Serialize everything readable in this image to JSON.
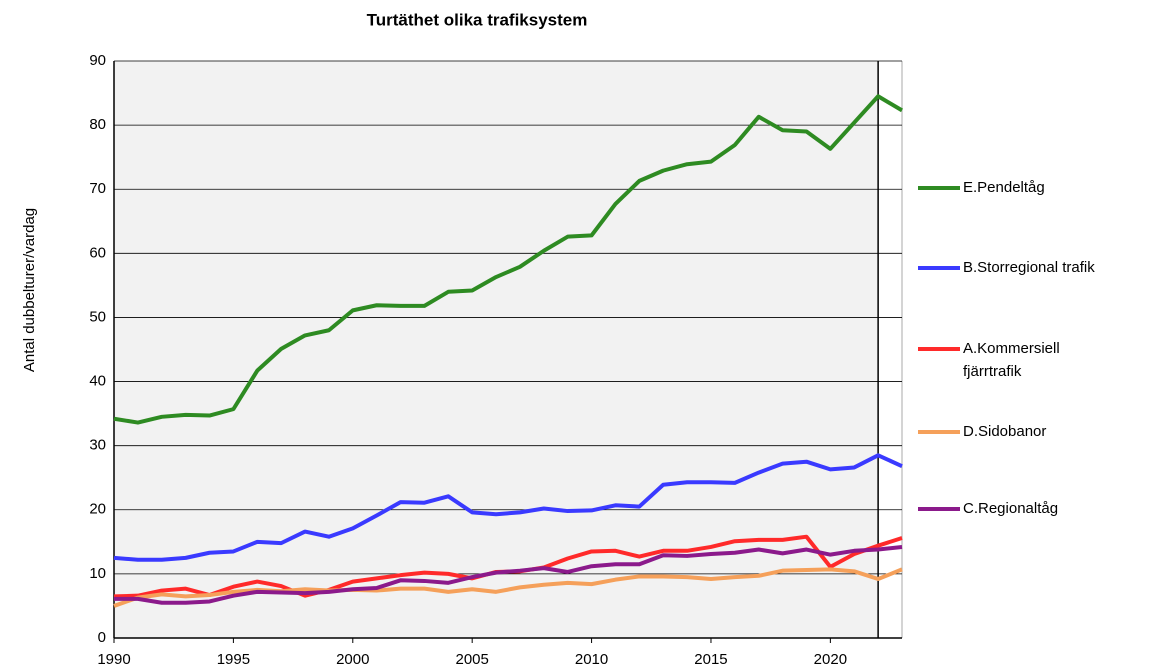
{
  "chart_data": {
    "type": "line",
    "title": "Turtäthet olika trafiksystem",
    "y_label": "Antal dubbelturer/vardag",
    "x": [
      1990,
      1991,
      1992,
      1993,
      1994,
      1995,
      1996,
      1997,
      1998,
      1999,
      2000,
      2001,
      2002,
      2003,
      2004,
      2005,
      2006,
      2007,
      2008,
      2009,
      2010,
      2011,
      2012,
      2013,
      2014,
      2015,
      2016,
      2017,
      2018,
      2019,
      2020,
      2021,
      2022,
      2023
    ],
    "xlim": [
      1990,
      2023
    ],
    "xticks": [
      1990,
      1995,
      2000,
      2005,
      2010,
      2015,
      2020
    ],
    "ylim": [
      0,
      90
    ],
    "yticks": [
      0,
      10,
      20,
      30,
      40,
      50,
      60,
      70,
      80,
      90
    ],
    "grid": true,
    "legend": "right",
    "marker_x": 2022,
    "series": [
      {
        "name": "E.Pendeltåg",
        "color": "#2e8b22",
        "values": [
          34.2,
          33.6,
          34.5,
          34.8,
          34.7,
          35.7,
          41.7,
          45.1,
          47.2,
          48.0,
          51.1,
          51.9,
          51.8,
          51.8,
          54.0,
          54.2,
          56.3,
          57.9,
          60.4,
          62.6,
          62.8,
          67.7,
          71.3,
          72.9,
          73.9,
          74.3,
          76.9,
          81.3,
          79.2,
          79.0,
          76.3,
          80.4,
          84.5,
          82.3
        ]
      },
      {
        "name": "B.Storregional trafik",
        "color": "#3a3aff",
        "values": [
          12.5,
          12.2,
          12.2,
          12.5,
          13.3,
          13.5,
          15.0,
          14.8,
          16.6,
          15.8,
          17.1,
          19.1,
          21.2,
          21.1,
          22.1,
          19.6,
          19.3,
          19.6,
          20.2,
          19.8,
          19.9,
          20.7,
          20.5,
          23.9,
          24.3,
          24.3,
          24.2,
          25.8,
          27.2,
          27.5,
          26.3,
          26.6,
          28.5,
          26.8
        ]
      },
      {
        "name": "A.Kommersiell fjärrtrafik",
        "color": "#ff2a2a",
        "values": [
          6.5,
          6.6,
          7.4,
          7.7,
          6.7,
          8.0,
          8.8,
          8.1,
          6.6,
          7.5,
          8.8,
          9.3,
          9.8,
          10.2,
          10.0,
          9.3,
          10.3,
          10.4,
          11.0,
          12.4,
          13.5,
          13.6,
          12.7,
          13.6,
          13.6,
          14.2,
          15.1,
          15.3,
          15.3,
          15.8,
          11.1,
          13.1,
          14.4,
          15.6
        ]
      },
      {
        "name": "D.Sidobanor",
        "color": "#f5a05a",
        "values": [
          5.0,
          6.3,
          6.8,
          6.5,
          6.7,
          7.2,
          7.5,
          7.3,
          7.6,
          7.4,
          7.5,
          7.4,
          7.7,
          7.7,
          7.2,
          7.6,
          7.2,
          7.9,
          8.3,
          8.6,
          8.4,
          9.1,
          9.6,
          9.6,
          9.5,
          9.2,
          9.5,
          9.7,
          10.5,
          10.6,
          10.7,
          10.4,
          9.2,
          10.7
        ]
      },
      {
        "name": "C.Regionaltåg",
        "color": "#8b1a8b",
        "values": [
          6.1,
          6.1,
          5.5,
          5.5,
          5.7,
          6.6,
          7.2,
          7.1,
          7.0,
          7.2,
          7.6,
          7.8,
          9.0,
          8.9,
          8.6,
          9.5,
          10.2,
          10.5,
          10.9,
          10.3,
          11.2,
          11.5,
          11.5,
          12.9,
          12.8,
          13.1,
          13.3,
          13.8,
          13.2,
          13.8,
          13.0,
          13.6,
          13.8,
          14.2
        ]
      }
    ]
  }
}
